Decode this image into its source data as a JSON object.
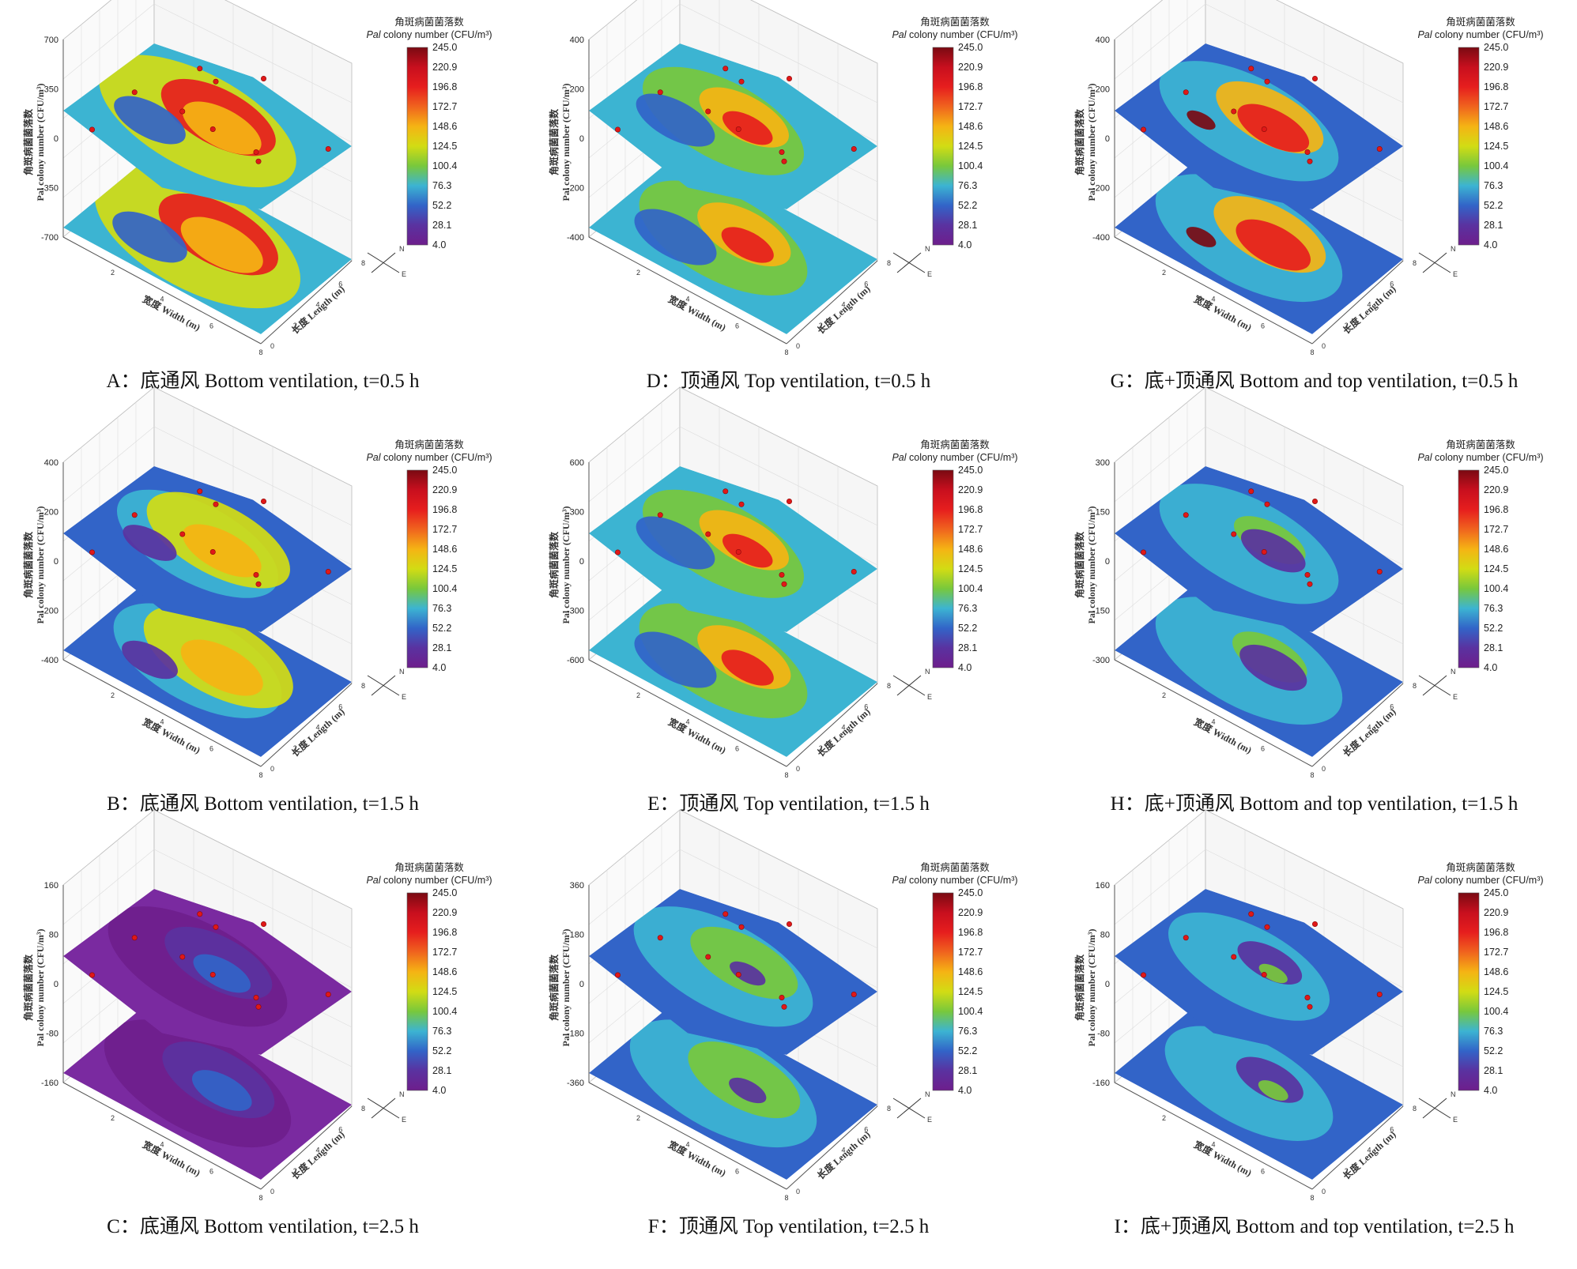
{
  "colorbar": {
    "title_cn": "角斑病菌菌落数",
    "title_en_italic": "Pal",
    "title_en_rest": " colony number (CFU/m³)",
    "ticks": [
      "245.0",
      "220.9",
      "196.8",
      "172.7",
      "148.6",
      "124.5",
      "100.4",
      "76.3",
      "52.2",
      "28.1",
      "4.0"
    ],
    "colors": [
      "#7a0a12",
      "#c80f1e",
      "#e61e1e",
      "#f0641e",
      "#f5b414",
      "#d2dc14",
      "#78c83c",
      "#3cb4d2",
      "#3264c8",
      "#5a32a0",
      "#6e1e8c"
    ]
  },
  "axes": {
    "z_label_cn": "角斑病菌菌落数",
    "z_label_en": "Pal colony number (CFU/m³)",
    "x_label": "宽度 Width (m)",
    "y_label": "长度 Length (m)",
    "x_ticks": [
      "2",
      "4",
      "6",
      "8"
    ],
    "y_ticks": [
      "0",
      "2",
      "4",
      "6",
      "8"
    ],
    "compass_n": "N",
    "compass_e": "E"
  },
  "chart_data": [
    {
      "type": "heatmap",
      "panel": "A",
      "caption": "A：底通风 Bottom ventilation, t=0.5 h",
      "z_ticks": [
        "700",
        "350",
        "0",
        "-350",
        "-700"
      ],
      "zlim": [
        -700,
        700
      ],
      "level": "high"
    },
    {
      "type": "heatmap",
      "panel": "D",
      "caption": "D：顶通风 Top ventilation, t=0.5 h",
      "z_ticks": [
        "400",
        "200",
        "0",
        "-200",
        "-400"
      ],
      "zlim": [
        -400,
        400
      ],
      "level": "mid"
    },
    {
      "type": "heatmap",
      "panel": "G",
      "caption": "G：底+顶通风 Bottom and top ventilation, t=0.5 h",
      "z_ticks": [
        "400",
        "200",
        "0",
        "-200",
        "-400"
      ],
      "zlim": [
        -400,
        400
      ],
      "level": "peak"
    },
    {
      "type": "heatmap",
      "panel": "B",
      "caption": "B：底通风 Bottom ventilation, t=1.5 h",
      "z_ticks": [
        "400",
        "200",
        "0",
        "-200",
        "-400"
      ],
      "zlim": [
        -400,
        400
      ],
      "level": "yellow"
    },
    {
      "type": "heatmap",
      "panel": "E",
      "caption": "E：顶通风 Top ventilation, t=1.5 h",
      "z_ticks": [
        "600",
        "300",
        "0",
        "-300",
        "-600"
      ],
      "zlim": [
        -600,
        600
      ],
      "level": "mid"
    },
    {
      "type": "heatmap",
      "panel": "H",
      "caption": "H：底+顶通风 Bottom and top ventilation, t=1.5 h",
      "z_ticks": [
        "300",
        "150",
        "0",
        "-150",
        "-300"
      ],
      "zlim": [
        -300,
        300
      ],
      "level": "low"
    },
    {
      "type": "heatmap",
      "panel": "C",
      "caption": "C：底通风 Bottom ventilation, t=2.5 h",
      "z_ticks": [
        "160",
        "80",
        "0",
        "-80",
        "-160"
      ],
      "zlim": [
        -160,
        160
      ],
      "level": "purple"
    },
    {
      "type": "heatmap",
      "panel": "F",
      "caption": "F：顶通风 Top ventilation, t=2.5 h",
      "z_ticks": [
        "360",
        "180",
        "0",
        "-180",
        "-360"
      ],
      "zlim": [
        -360,
        360
      ],
      "level": "green"
    },
    {
      "type": "heatmap",
      "panel": "I",
      "caption": "I：底+顶通风 Bottom and top ventilation, t=2.5 h",
      "z_ticks": [
        "160",
        "80",
        "0",
        "-80",
        "-160"
      ],
      "zlim": [
        -160,
        160
      ],
      "level": "blue"
    }
  ]
}
